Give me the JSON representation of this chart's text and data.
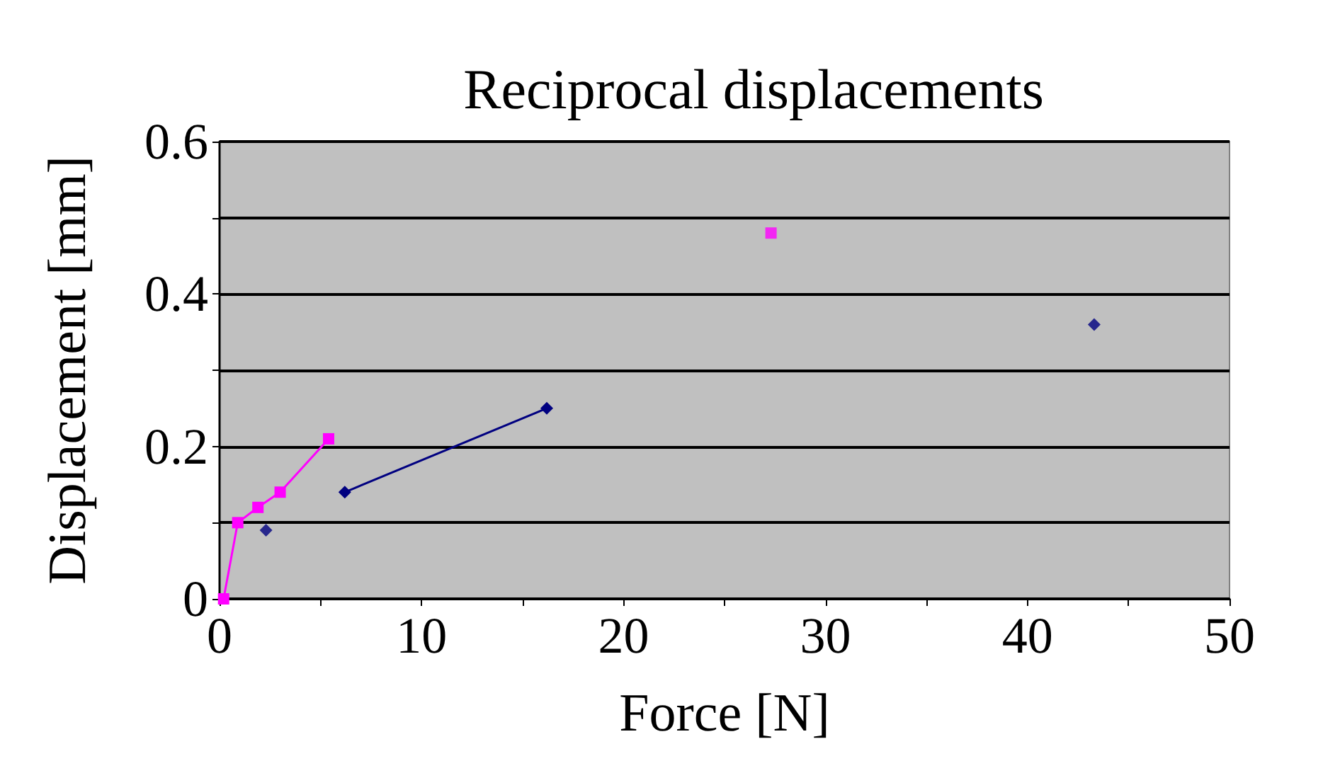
{
  "chart_data": {
    "type": "line",
    "title": "Reciprocal displacements",
    "xlabel": "Force [N]",
    "ylabel": "Displacement [mm]",
    "xlim": [
      0,
      50
    ],
    "xticks": [
      0,
      {
        "value": 5,
        "label": null
      },
      10,
      {
        "value": 15,
        "label": null
      },
      20,
      {
        "value": 25,
        "label": null
      },
      30,
      {
        "value": 35,
        "label": null
      },
      40,
      {
        "value": 45,
        "label": null
      },
      50
    ],
    "ylim": [
      0,
      0.6
    ],
    "yticks": [
      0,
      {
        "value": 0.1,
        "label": null
      },
      0.2,
      {
        "value": 0.3,
        "label": null
      },
      0.4,
      {
        "value": 0.5,
        "label": null
      },
      0.6
    ],
    "grid": "y",
    "series": [
      {
        "color": "#ff00ff",
        "marker": "square",
        "x": [
          0.2,
          0.9,
          1.9,
          3.0,
          5.4
        ],
        "values": [
          0,
          0.1,
          0.12,
          0.14,
          0.21
        ]
      },
      {
        "type": "scatter",
        "color": "#ff00ff",
        "marker": "square",
        "x": [
          27.3
        ],
        "values": [
          0.48
        ]
      },
      {
        "type": "scatter",
        "color": "#000080",
        "marker": "diamond",
        "x": [
          2.3
        ],
        "values": [
          0.09
        ]
      },
      {
        "color": "#000080",
        "marker": "diamond",
        "x": [
          6.2,
          16.2
        ],
        "values": [
          0.14,
          0.25
        ]
      },
      {
        "type": "scatter",
        "color": "#000080",
        "marker": "diamond",
        "x": [
          43.3
        ],
        "values": [
          0.36
        ]
      }
    ]
  }
}
